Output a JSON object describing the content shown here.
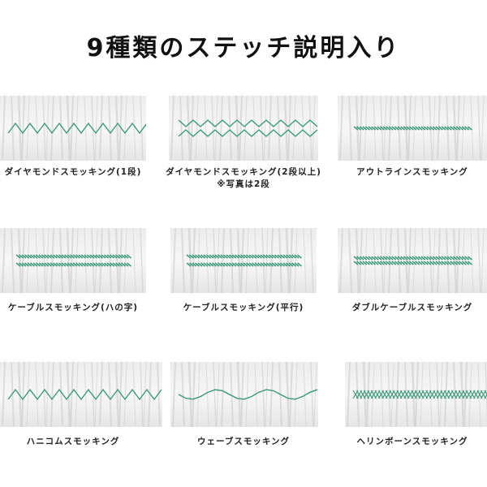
{
  "title": "9種類のステッチ説明入り",
  "stitch_color": "#3a9a78",
  "stitches": [
    {
      "label": "ダイヤモンドスモッキング(1段)",
      "note": "",
      "pattern": "zigzag"
    },
    {
      "label": "ダイヤモンドスモッキング(2段以上)",
      "note": "※写真は2段",
      "pattern": "diamond"
    },
    {
      "label": "アウトラインスモッキング",
      "note": "",
      "pattern": "outline"
    },
    {
      "label": "ケーブルスモッキング(ハの字)",
      "note": "",
      "pattern": "cable-v"
    },
    {
      "label": "ケーブルスモッキング(平行)",
      "note": "",
      "pattern": "cable"
    },
    {
      "label": "ダブルケーブルスモッキング",
      "note": "",
      "pattern": "double-cable"
    },
    {
      "label": "ハニコムスモッキング",
      "note": "",
      "pattern": "honeycomb"
    },
    {
      "label": "ウェーブスモッキング",
      "note": "",
      "pattern": "wave"
    },
    {
      "label": "ヘリンボーンスモッキング",
      "note": "",
      "pattern": "herringbone"
    }
  ]
}
